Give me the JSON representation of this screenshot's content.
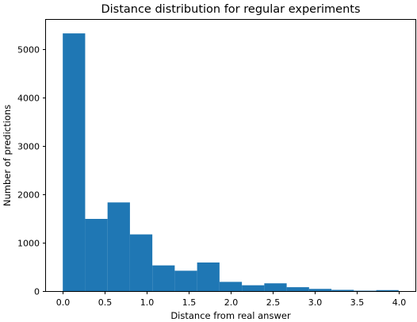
{
  "chart_data": {
    "type": "bar",
    "title": "Distance distribution for regular experiments",
    "xlabel": "Distance from real answer",
    "ylabel": "Number of predictions",
    "bin_edges": [
      0.0,
      0.2667,
      0.5333,
      0.8,
      1.0667,
      1.3333,
      1.6,
      1.8667,
      2.1333,
      2.4,
      2.6667,
      2.9333,
      3.2,
      3.4667,
      3.7333,
      4.0
    ],
    "values": [
      5320,
      1490,
      1830,
      1170,
      530,
      420,
      590,
      190,
      120,
      160,
      80,
      45,
      25,
      8,
      20
    ],
    "xlim": [
      -0.2,
      4.2
    ],
    "ylim": [
      0,
      5600
    ],
    "xticks": [
      0.0,
      0.5,
      1.0,
      1.5,
      2.0,
      2.5,
      3.0,
      3.5,
      4.0
    ],
    "xtick_labels": [
      "0.0",
      "0.5",
      "1.0",
      "1.5",
      "2.0",
      "2.5",
      "3.0",
      "3.5",
      "4.0"
    ],
    "yticks": [
      0,
      1000,
      2000,
      3000,
      4000,
      5000
    ],
    "ytick_labels": [
      "0",
      "1000",
      "2000",
      "3000",
      "4000",
      "5000"
    ],
    "color": "#1f77b4",
    "grid": false
  }
}
